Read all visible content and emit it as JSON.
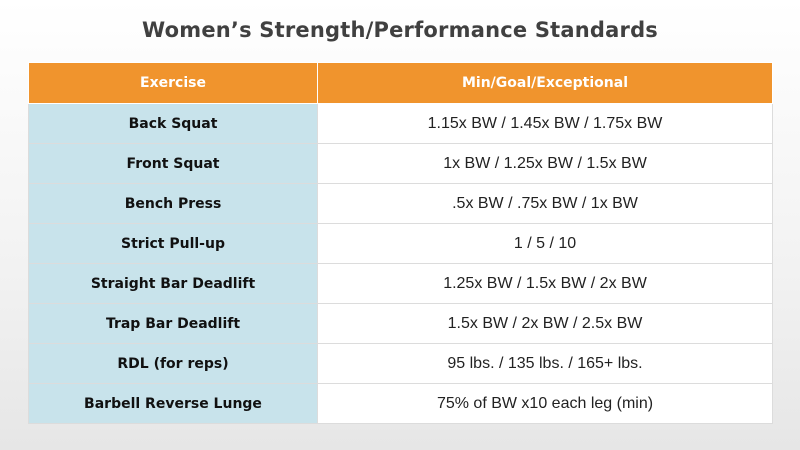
{
  "title": "Women’s Strength/Performance Standards",
  "table": {
    "headers": [
      "Exercise",
      "Min/Goal/Exceptional"
    ],
    "rows": [
      {
        "exercise": "Back Squat",
        "standard": "1.15x BW / 1.45x BW / 1.75x BW"
      },
      {
        "exercise": "Front Squat",
        "standard": "1x BW / 1.25x BW / 1.5x BW"
      },
      {
        "exercise": "Bench Press",
        "standard": ".5x BW / .75x BW / 1x BW"
      },
      {
        "exercise": "Strict Pull-up",
        "standard": "1 / 5 / 10"
      },
      {
        "exercise": "Straight Bar Deadlift",
        "standard": "1.25x BW / 1.5x BW / 2x BW"
      },
      {
        "exercise": "Trap Bar Deadlift",
        "standard": "1.5x BW / 2x BW / 2.5x BW"
      },
      {
        "exercise": "RDL (for reps)",
        "standard": "95 lbs. / 135 lbs. / 165+ lbs."
      },
      {
        "exercise": "Barbell Reverse Lunge",
        "standard": "75% of BW x10 each leg (min)"
      }
    ]
  },
  "colors": {
    "header_bg": "#f0942d",
    "exercise_col_bg": "#c8e3eb",
    "title_text": "#404040"
  }
}
